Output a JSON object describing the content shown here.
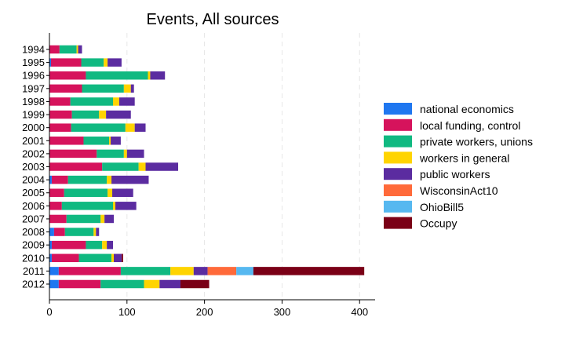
{
  "chart_data": {
    "type": "bar",
    "orientation": "horizontal",
    "stacked": true,
    "title": "Events, All sources",
    "xlabel": "",
    "ylabel": "",
    "xlim": [
      0,
      420
    ],
    "xticks": [
      0,
      100,
      200,
      300,
      400
    ],
    "grid": "vertical dashed",
    "legend_position": "right",
    "categories": [
      "1994",
      "1995",
      "1996",
      "1997",
      "1998",
      "1999",
      "2000",
      "2001",
      "2002",
      "2003",
      "2004",
      "2005",
      "2006",
      "2007",
      "2008",
      "2009",
      "2010",
      "2011",
      "2012"
    ],
    "series": [
      {
        "name": "national economics",
        "color": "#1f77f0",
        "values": [
          0,
          2,
          0,
          0,
          0,
          0,
          0,
          0,
          0,
          0,
          3,
          0,
          0,
          0,
          6,
          3,
          3,
          12,
          12
        ]
      },
      {
        "name": "local funding, control",
        "color": "#d6135c",
        "values": [
          13,
          39,
          47,
          42,
          27,
          29,
          28,
          44,
          61,
          68,
          21,
          19,
          16,
          22,
          14,
          44,
          35,
          80,
          54
        ]
      },
      {
        "name": "private workers, unions",
        "color": "#10b981",
        "values": [
          22,
          29,
          80,
          54,
          55,
          35,
          70,
          33,
          35,
          47,
          50,
          56,
          66,
          44,
          37,
          21,
          42,
          64,
          56
        ]
      },
      {
        "name": "workers in general",
        "color": "#ffd400",
        "values": [
          2,
          5,
          3,
          9,
          8,
          9,
          12,
          2,
          4,
          9,
          6,
          6,
          3,
          5,
          3,
          6,
          3,
          30,
          20
        ]
      },
      {
        "name": "public workers",
        "color": "#5b2ca0",
        "values": [
          5,
          18,
          19,
          4,
          20,
          32,
          14,
          13,
          22,
          42,
          48,
          27,
          27,
          12,
          4,
          8,
          10,
          18,
          27
        ]
      },
      {
        "name": "WisconsinAct10",
        "color": "#ff6a3a",
        "values": [
          0,
          0,
          0,
          0,
          0,
          0,
          0,
          0,
          0,
          0,
          0,
          0,
          0,
          0,
          0,
          0,
          0,
          37,
          0
        ]
      },
      {
        "name": "OhioBill5",
        "color": "#56b8f0",
        "values": [
          0,
          0,
          0,
          0,
          0,
          0,
          0,
          0,
          0,
          0,
          0,
          0,
          0,
          0,
          0,
          0,
          0,
          22,
          0
        ]
      },
      {
        "name": "Occupy",
        "color": "#7a0016",
        "values": [
          0,
          0,
          0,
          0,
          0,
          0,
          0,
          0,
          0,
          0,
          0,
          0,
          0,
          0,
          0,
          0,
          2,
          143,
          37
        ]
      }
    ]
  }
}
